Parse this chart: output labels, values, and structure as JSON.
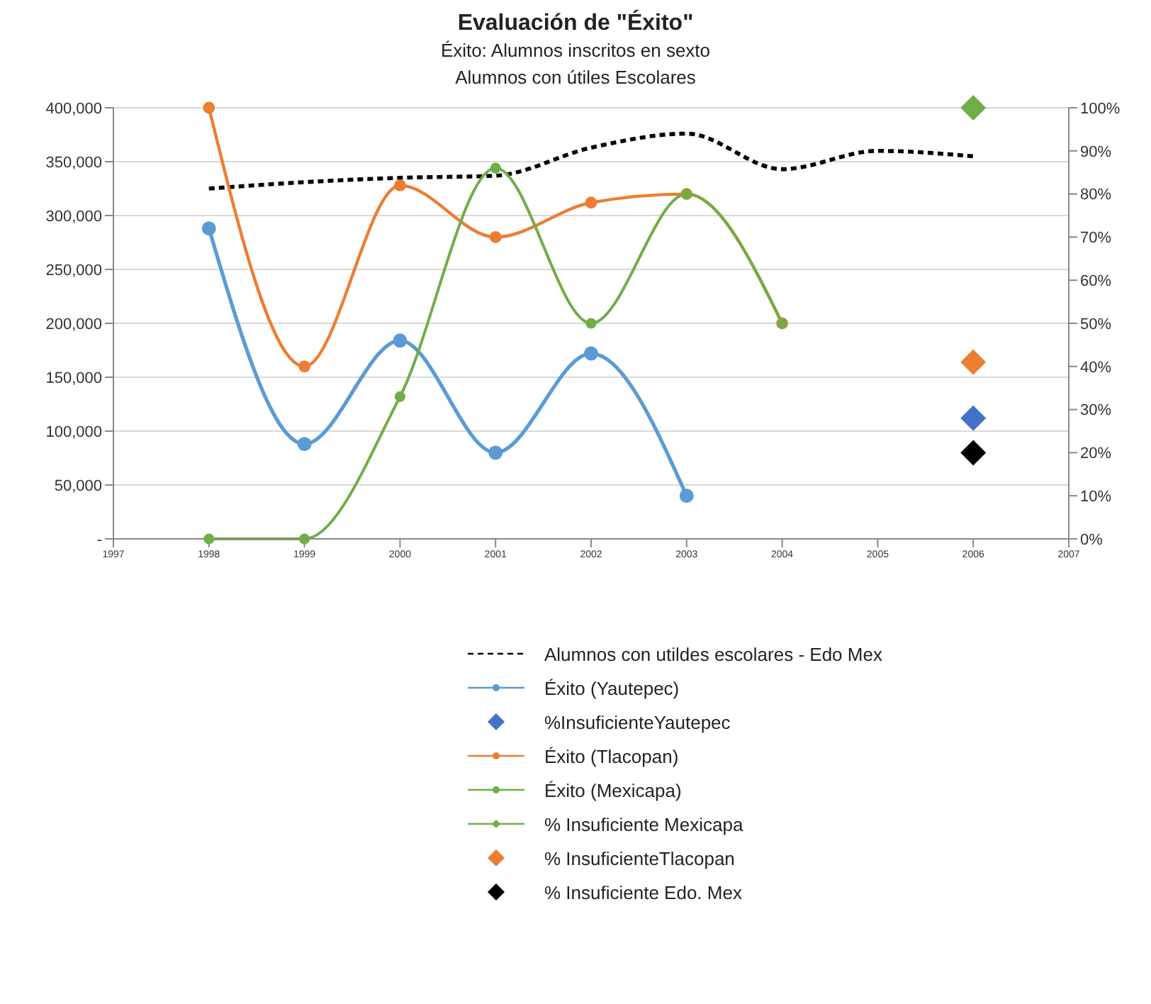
{
  "chart_data": {
    "type": "line",
    "title": "Evaluación de \"Éxito\"",
    "subtitle": "Éxito: Alumnos inscritos en sexto\nAlumnos con útiles Escolares",
    "xlim": [
      1997,
      2007
    ],
    "xticks": [
      1997,
      1998,
      1999,
      2000,
      2001,
      2002,
      2003,
      2004,
      2005,
      2006,
      2007
    ],
    "ylim": [
      0,
      400000
    ],
    "yticks": [
      {
        "value": 0,
        "label": "-"
      },
      {
        "value": 50000,
        "label": "50,000"
      },
      {
        "value": 100000,
        "label": "100,000"
      },
      {
        "value": 150000,
        "label": "150,000"
      },
      {
        "value": 200000,
        "label": "200,000"
      },
      {
        "value": 250000,
        "label": "250,000"
      },
      {
        "value": 300000,
        "label": "300,000"
      },
      {
        "value": 350000,
        "label": "350,000"
      },
      {
        "value": 400000,
        "label": "400,000"
      }
    ],
    "y2lim": [
      0,
      100
    ],
    "y2ticks": [
      {
        "value": 0,
        "label": "0%"
      },
      {
        "value": 10,
        "label": "10%"
      },
      {
        "value": 20,
        "label": "20%"
      },
      {
        "value": 30,
        "label": "30%"
      },
      {
        "value": 40,
        "label": "40%"
      },
      {
        "value": 50,
        "label": "50%"
      },
      {
        "value": 60,
        "label": "60%"
      },
      {
        "value": 70,
        "label": "70%"
      },
      {
        "value": 80,
        "label": "80%"
      },
      {
        "value": 90,
        "label": "90%"
      },
      {
        "value": 100,
        "label": "100%"
      }
    ],
    "grid": "y",
    "legend": "bottom",
    "series": [
      {
        "name": "Alumnos con utildes escolares - Edo Mex",
        "color": "#000000",
        "line_style": "dashed",
        "marker": "none",
        "x": [
          1998,
          1999,
          2000,
          2001,
          2002,
          2003,
          2004,
          2005,
          2006
        ],
        "values": [
          325000,
          331000,
          335000,
          337000,
          363000,
          376000,
          343000,
          360000,
          355000
        ]
      },
      {
        "name": "Éxito (Yautepec)",
        "axis": "y2",
        "color": "#5b9bd5",
        "line_style": "solid",
        "marker": "circle",
        "x": [
          1998,
          1999,
          2000,
          2001,
          2002,
          2003
        ],
        "values": [
          72,
          22,
          46,
          20,
          43,
          10
        ]
      },
      {
        "name": "%InsuficienteYautepec",
        "type": "scatter",
        "axis": "y2",
        "color": "#4472c4",
        "marker": "diamond",
        "x": [
          2006
        ],
        "values": [
          28
        ]
      },
      {
        "name": "Éxito (Tlacopan)",
        "axis": "y2",
        "color": "#ed7d31",
        "line_style": "solid",
        "marker": "circle",
        "x": [
          1998,
          1999,
          2000,
          2001,
          2002,
          2003,
          2004
        ],
        "values": [
          100,
          40,
          82,
          70,
          78,
          80,
          50
        ]
      },
      {
        "name": "Éxito (Mexicapa)",
        "axis": "y2",
        "color": "#70ad47",
        "line_style": "solid",
        "marker": "circle",
        "x": [
          1998,
          1999,
          2000,
          2001,
          2002,
          2003,
          2004
        ],
        "values": [
          0,
          0,
          33,
          86,
          50,
          80,
          50
        ]
      },
      {
        "name": "% Insuficiente Mexicapa",
        "axis": "y2",
        "color": "#70ad47",
        "line_style": "solid",
        "marker": "diamond",
        "x": [
          2006
        ],
        "values": [
          100
        ]
      },
      {
        "name": "% InsuficienteTlacopan",
        "type": "scatter",
        "axis": "y2",
        "color": "#ed7d31",
        "marker": "diamond",
        "x": [
          2006
        ],
        "values": [
          41
        ]
      },
      {
        "name": "% Insuficiente Edo. Mex",
        "type": "scatter",
        "axis": "y2",
        "color": "#000000",
        "marker": "diamond",
        "x": [
          2006
        ],
        "values": [
          20
        ]
      }
    ]
  }
}
